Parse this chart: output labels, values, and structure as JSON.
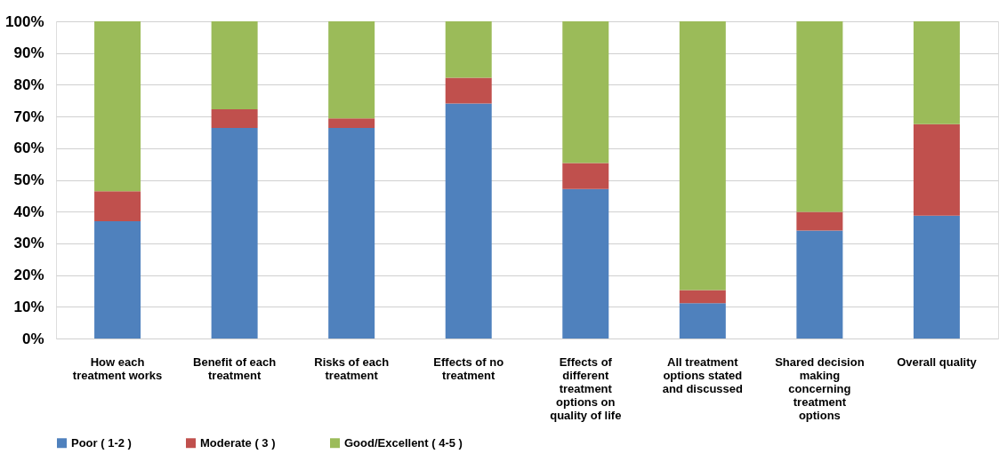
{
  "chart_data": {
    "type": "bar",
    "stacked": true,
    "categories": [
      "How each treatment works",
      "Benefit of each treatment",
      "Risks of each treatment",
      "Effects of no treatment",
      "Effects of different treatment options on quality of life",
      "All treatment options stated and discussed",
      "Shared decision making concerning treatment options",
      "Overall quality"
    ],
    "series": [
      {
        "name": "Poor ( 1-2 )",
        "color": "#4f81bd",
        "values": [
          37,
          66.4,
          66.4,
          74.1,
          47.1,
          11.1,
          34,
          38.7
        ]
      },
      {
        "name": "Moderate ( 3 )",
        "color": "#c0504d",
        "values": [
          9.4,
          5.9,
          3,
          8.1,
          8.2,
          4.2,
          5.9,
          28.9
        ]
      },
      {
        "name": "Good/Excellent ( 4-5 )",
        "color": "#9bbb59",
        "values": [
          53.6,
          27.7,
          30.6,
          17.8,
          44.7,
          84.7,
          60.1,
          32.4
        ]
      }
    ],
    "ylim": [
      0,
      100
    ],
    "yticks": [
      {
        "value": 0,
        "label": "0%"
      },
      {
        "value": 10,
        "label": "10%"
      },
      {
        "value": 20,
        "label": "20%"
      },
      {
        "value": 30,
        "label": "30%"
      },
      {
        "value": 40,
        "label": "40%"
      },
      {
        "value": 50,
        "label": "50%"
      },
      {
        "value": 60,
        "label": "60%"
      },
      {
        "value": 70,
        "label": "70%"
      },
      {
        "value": 80,
        "label": "80%"
      },
      {
        "value": 90,
        "label": "90%"
      },
      {
        "value": 100,
        "label": "100%"
      }
    ],
    "grid": "y",
    "legend": "bottom"
  }
}
